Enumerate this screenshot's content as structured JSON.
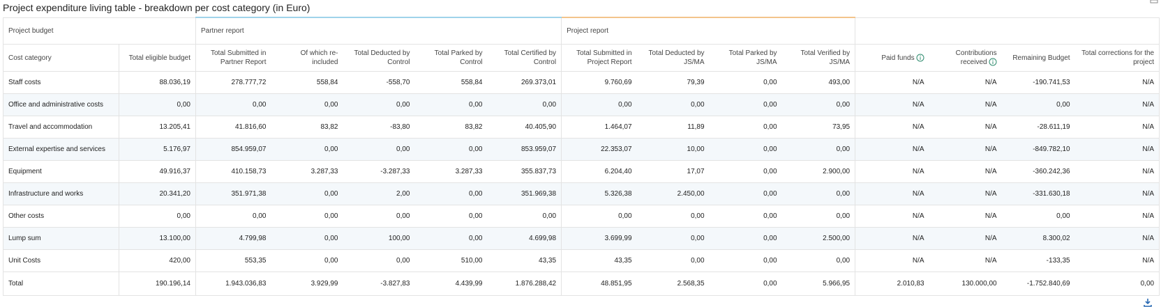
{
  "header": {
    "title": "Project expenditure living table - breakdown per cost category (in Euro)"
  },
  "table": {
    "group_headers": [
      "Project budget",
      "Partner report",
      "Project report"
    ],
    "columns": [
      "Cost category",
      "Total eligible budget",
      "Total Submitted in Partner Report",
      "Of which re-included",
      "Total Deducted by Control",
      "Total Parked by Control",
      "Total Certified by Control",
      "Total Submitted in Project Report",
      "Total Deducted by JS/MA",
      "Total Parked by JS/MA",
      "Total Verified by JS/MA",
      "Paid funds",
      "Contributions received",
      "Remaining Budget",
      "Total corrections for the project"
    ],
    "rows": [
      [
        "Staff costs",
        "88.036,19",
        "278.777,72",
        "558,84",
        "-558,70",
        "558,84",
        "269.373,01",
        "9.760,69",
        "79,39",
        "0,00",
        "493,00",
        "N/A",
        "N/A",
        "-190.741,53",
        "N/A"
      ],
      [
        "Office and administrative costs",
        "0,00",
        "0,00",
        "0,00",
        "0,00",
        "0,00",
        "0,00",
        "0,00",
        "0,00",
        "0,00",
        "0,00",
        "N/A",
        "N/A",
        "0,00",
        "N/A"
      ],
      [
        "Travel and accommodation",
        "13.205,41",
        "41.816,60",
        "83,82",
        "-83,80",
        "83,82",
        "40.405,90",
        "1.464,07",
        "11,89",
        "0,00",
        "73,95",
        "N/A",
        "N/A",
        "-28.611,19",
        "N/A"
      ],
      [
        "External expertise and services",
        "5.176,97",
        "854.959,07",
        "0,00",
        "0,00",
        "0,00",
        "853.959,07",
        "22.353,07",
        "10,00",
        "0,00",
        "0,00",
        "N/A",
        "N/A",
        "-849.782,10",
        "N/A"
      ],
      [
        "Equipment",
        "49.916,37",
        "410.158,73",
        "3.287,33",
        "-3.287,33",
        "3.287,33",
        "355.837,73",
        "6.204,40",
        "17,07",
        "0,00",
        "2.900,00",
        "N/A",
        "N/A",
        "-360.242,36",
        "N/A"
      ],
      [
        "Infrastructure and works",
        "20.341,20",
        "351.971,38",
        "0,00",
        "2,00",
        "0,00",
        "351.969,38",
        "5.326,38",
        "2.450,00",
        "0,00",
        "0,00",
        "N/A",
        "N/A",
        "-331.630,18",
        "N/A"
      ],
      [
        "Other costs",
        "0,00",
        "0,00",
        "0,00",
        "0,00",
        "0,00",
        "0,00",
        "0,00",
        "0,00",
        "0,00",
        "0,00",
        "N/A",
        "N/A",
        "0,00",
        "N/A"
      ],
      [
        "Lump sum",
        "13.100,00",
        "4.799,98",
        "0,00",
        "100,00",
        "0,00",
        "4.699,98",
        "3.699,99",
        "0,00",
        "0,00",
        "2.500,00",
        "N/A",
        "N/A",
        "8.300,02",
        "N/A"
      ],
      [
        "Unit Costs",
        "420,00",
        "553,35",
        "0,00",
        "0,00",
        "510,00",
        "43,35",
        "43,35",
        "0,00",
        "0,00",
        "0,00",
        "N/A",
        "N/A",
        "-133,35",
        "N/A"
      ]
    ],
    "total": [
      "Total",
      "190.196,14",
      "1.943.036,83",
      "3.929,99",
      "-3.827,83",
      "4.439,99",
      "1.876.288,42",
      "48.851,95",
      "2.568,35",
      "0,00",
      "5.966,95",
      "2.010,83",
      "130.000,00",
      "-1.752.840,69",
      "0,00"
    ]
  }
}
